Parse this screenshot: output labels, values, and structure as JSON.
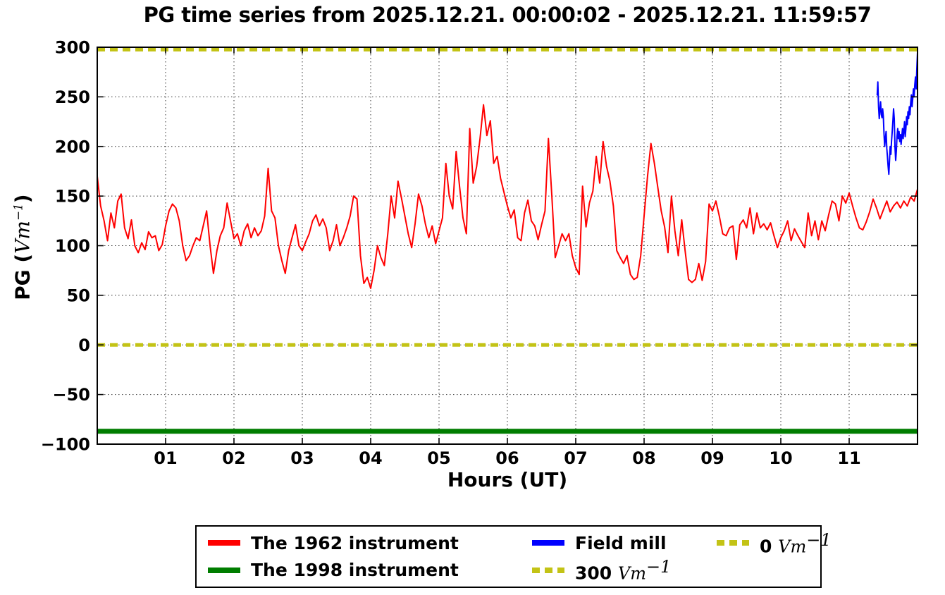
{
  "title": "PG time series from 2025.12.21. 00:00:02 - 2025.12.21. 11:59:57",
  "axes": {
    "xlabel": "Hours (UT)",
    "ylabel_prefix": "PG (",
    "ylabel_math": "Vm",
    "ylabel_sup": "−1",
    "ylabel_suffix": ")",
    "x_ticks": [
      {
        "value": 1,
        "label": "01"
      },
      {
        "value": 2,
        "label": "02"
      },
      {
        "value": 3,
        "label": "03"
      },
      {
        "value": 4,
        "label": "04"
      },
      {
        "value": 5,
        "label": "05"
      },
      {
        "value": 6,
        "label": "06"
      },
      {
        "value": 7,
        "label": "07"
      },
      {
        "value": 8,
        "label": "08"
      },
      {
        "value": 9,
        "label": "09"
      },
      {
        "value": 10,
        "label": "10"
      },
      {
        "value": 11,
        "label": "11"
      }
    ],
    "y_ticks": [
      {
        "value": 300,
        "label": "300"
      },
      {
        "value": 250,
        "label": "250"
      },
      {
        "value": 200,
        "label": "200"
      },
      {
        "value": 150,
        "label": "150"
      },
      {
        "value": 100,
        "label": "100"
      },
      {
        "value": 50,
        "label": "50"
      },
      {
        "value": 0,
        "label": "0"
      },
      {
        "value": -50,
        "label": "−50"
      },
      {
        "value": -100,
        "label": "−100"
      }
    ],
    "grid": true
  },
  "colors": {
    "instrument_1962": "#ff0000",
    "instrument_1998": "#007d00",
    "field_mill": "#0000ff",
    "reference": "#c3c316",
    "grid": "#000000",
    "frame": "#000000"
  },
  "legend": {
    "items": [
      {
        "label": "The 1962 instrument",
        "series": 0
      },
      {
        "label": "The 1998 instrument",
        "series": 1
      },
      {
        "label": "Field mill",
        "series": 2
      },
      {
        "label": "300",
        "unit": "Vm",
        "sup": "−1",
        "series": 3
      },
      {
        "label": "0",
        "unit": "Vm",
        "sup": "−1",
        "series": 4
      }
    ]
  },
  "chart_data": {
    "type": "line",
    "title": "PG time series from 2025.12.21. 00:00:02 - 2025.12.21. 11:59:57",
    "xlabel": "Hours (UT)",
    "ylabel": "PG (Vm−1)",
    "xlim": [
      0,
      12
    ],
    "ylim": [
      -100,
      300
    ],
    "grid": "dotted",
    "legend_position": "bottom",
    "series": [
      {
        "name": "The 1962 instrument",
        "color": "#ff0000",
        "style": "solid",
        "width": 2,
        "x_start": 0,
        "x_step": 0.05,
        "y": [
          170,
          140,
          125,
          105,
          133,
          118,
          145,
          152,
          118,
          107,
          126,
          100,
          93,
          103,
          96,
          114,
          108,
          110,
          95,
          101,
          120,
          135,
          142,
          138,
          125,
          100,
          85,
          90,
          100,
          108,
          105,
          120,
          135,
          100,
          72,
          95,
          110,
          118,
          143,
          125,
          107,
          112,
          100,
          115,
          122,
          108,
          118,
          110,
          115,
          130,
          178,
          135,
          128,
          100,
          85,
          72,
          95,
          108,
          121,
          100,
          95,
          104,
          112,
          125,
          131,
          120,
          127,
          118,
          95,
          105,
          121,
          100,
          108,
          118,
          130,
          150,
          147,
          90,
          62,
          68,
          57,
          75,
          100,
          88,
          80,
          112,
          150,
          128,
          165,
          148,
          130,
          112,
          98,
          122,
          152,
          140,
          122,
          108,
          120,
          102,
          115,
          128,
          183,
          150,
          137,
          195,
          160,
          128,
          112,
          218,
          163,
          180,
          208,
          242,
          211,
          226,
          183,
          190,
          168,
          154,
          140,
          128,
          136,
          108,
          105,
          133,
          146,
          125,
          120,
          106,
          121,
          135,
          208,
          150,
          88,
          100,
          112,
          105,
          112,
          90,
          78,
          71,
          160,
          119,
          143,
          155,
          190,
          163,
          205,
          180,
          165,
          140,
          95,
          88,
          82,
          90,
          71,
          66,
          68,
          90,
          130,
          170,
          203,
          183,
          159,
          135,
          119,
          93,
          150,
          115,
          90,
          126,
          95,
          66,
          63,
          66,
          82,
          65,
          84,
          142,
          135,
          145,
          130,
          112,
          110,
          118,
          120,
          86,
          121,
          126,
          118,
          138,
          112,
          133,
          118,
          122,
          116,
          123,
          110,
          98,
          108,
          115,
          125,
          105,
          117,
          110,
          104,
          98,
          133,
          110,
          125,
          106,
          125,
          115,
          131,
          145,
          142,
          125,
          150,
          143,
          153,
          140,
          128,
          118,
          116,
          124,
          134,
          147,
          138,
          127,
          136,
          145,
          134,
          140,
          144,
          138,
          145,
          140,
          149,
          145,
          157
        ]
      },
      {
        "name": "The 1998 instrument",
        "color": "#007d00",
        "style": "solid",
        "width": 7,
        "constant_value": -87
      },
      {
        "name": "Field mill",
        "color": "#0000ff",
        "style": "solid",
        "width": 2,
        "x_start": 11.41,
        "x_step": 0.01,
        "y": [
          252,
          265,
          240,
          228,
          237,
          245,
          232,
          229,
          238,
          230,
          212,
          200,
          208,
          215,
          198,
          190,
          180,
          172,
          185,
          200,
          192,
          205,
          215,
          226,
          238,
          228,
          200,
          186,
          195,
          210,
          218,
          208,
          215,
          205,
          212,
          202,
          210,
          218,
          208,
          216,
          225,
          210,
          218,
          230,
          222,
          235,
          228,
          240,
          232,
          244,
          252,
          240,
          248,
          258,
          250,
          262,
          270,
          258,
          278,
          295
        ]
      },
      {
        "name": "300 Vm−1",
        "color": "#c3c316",
        "style": "dashed",
        "width": 5,
        "constant_value": 300
      },
      {
        "name": "0 Vm−1",
        "color": "#c3c316",
        "style": "dashed",
        "width": 5,
        "constant_value": 0
      }
    ]
  }
}
